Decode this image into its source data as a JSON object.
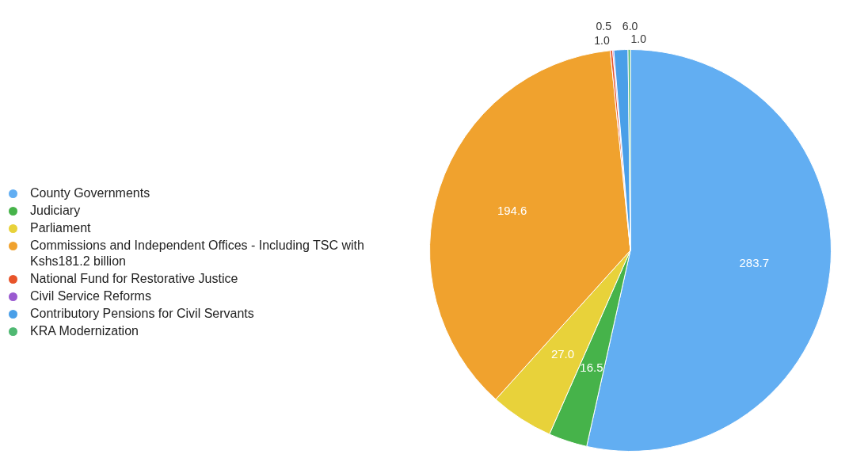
{
  "chart_data": {
    "type": "pie",
    "categories": [
      "County Governments",
      "Judiciary",
      "Parliament",
      "Commissions and Independent Offices - Including TSC with Kshs181.2 billion",
      "National Fund for Restorative Justice",
      "Civil Service Reforms",
      "Contributory Pensions for Civil Servants",
      "KRA Modernization"
    ],
    "values": [
      283.7,
      16.5,
      27.0,
      194.6,
      1.0,
      0.5,
      6.0,
      1.0
    ],
    "colors": [
      "#62aef2",
      "#46b34a",
      "#e8d23a",
      "#f0a22e",
      "#e8542a",
      "#9a5ad0",
      "#4a9fe8",
      "#4fb872"
    ],
    "value_labels": [
      "283.7",
      "16.5",
      "27.0",
      "194.6",
      "1.0",
      "0.5",
      "6.0",
      "1.0"
    ],
    "legend": "left"
  }
}
